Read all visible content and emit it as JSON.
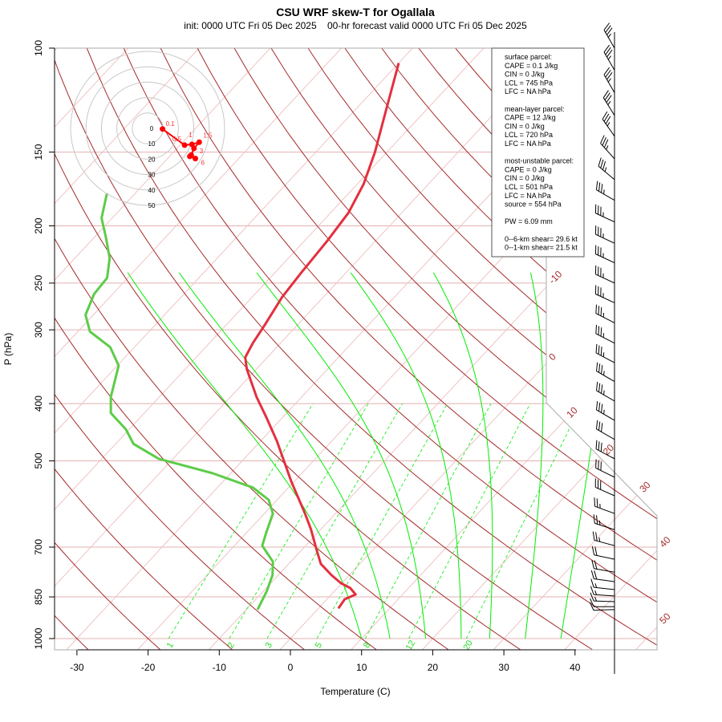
{
  "chart_data": {
    "type": "skew-T",
    "title": "CSU WRF skew-T for Ogallala",
    "subtitle": "init: 0000 UTC Fri 05 Dec 2025    00-hr forecast valid 0000 UTC Fri 05 Dec 2025",
    "xlabel": "Temperature (C)",
    "ylabel": "P (hPa)",
    "x_ticks": [
      -30,
      -20,
      -10,
      0,
      10,
      20,
      30,
      40
    ],
    "p_ticks": [
      100,
      150,
      200,
      250,
      300,
      400,
      500,
      700,
      850,
      1000
    ],
    "p_range": [
      1050,
      100
    ],
    "isotherm_labels": [
      -10,
      0,
      10,
      20,
      30,
      40,
      50
    ],
    "dry_adiabats_theta_C": {
      "from": -40,
      "to": 200,
      "step": 10
    },
    "moist_adiabats_1000hPa_C": [
      10,
      14,
      19,
      24,
      28,
      33,
      38
    ],
    "mixing_ratio_lines_gkg": [
      1,
      2,
      3,
      5,
      8,
      12,
      20
    ],
    "temperature": [
      {
        "p": 889,
        "T": 2.8
      },
      {
        "p": 858,
        "T": 2.5
      },
      {
        "p": 842,
        "T": 3.4
      },
      {
        "p": 821,
        "T": 1.8
      },
      {
        "p": 806,
        "T": -0.1
      },
      {
        "p": 781,
        "T": -2.5
      },
      {
        "p": 747,
        "T": -5.5
      },
      {
        "p": 711,
        "T": -7.7
      },
      {
        "p": 653,
        "T": -11.4
      },
      {
        "p": 614,
        "T": -14.3
      },
      {
        "p": 542,
        "T": -20.4
      },
      {
        "p": 463,
        "T": -27.7
      },
      {
        "p": 422,
        "T": -32.3
      },
      {
        "p": 390,
        "T": -36.3
      },
      {
        "p": 350,
        "T": -41.3
      },
      {
        "p": 334,
        "T": -43.1
      },
      {
        "p": 316,
        "T": -43.9
      },
      {
        "p": 294,
        "T": -44.6
      },
      {
        "p": 264,
        "T": -45.8
      },
      {
        "p": 240,
        "T": -46.3
      },
      {
        "p": 212,
        "T": -46.8
      },
      {
        "p": 190,
        "T": -47.5
      },
      {
        "p": 170,
        "T": -49.1
      },
      {
        "p": 150,
        "T": -51.7
      },
      {
        "p": 128,
        "T": -55.5
      },
      {
        "p": 106,
        "T": -60.0
      }
    ],
    "dewpoint": [
      {
        "p": 893,
        "Td": -8.4
      },
      {
        "p": 832,
        "Td": -9.5
      },
      {
        "p": 781,
        "Td": -10.8
      },
      {
        "p": 741,
        "Td": -12.5
      },
      {
        "p": 696,
        "Td": -16.1
      },
      {
        "p": 660,
        "Td": -17.3
      },
      {
        "p": 614,
        "Td": -18.8
      },
      {
        "p": 582,
        "Td": -21.2
      },
      {
        "p": 555,
        "Td": -25.0
      },
      {
        "p": 525,
        "Td": -32.5
      },
      {
        "p": 496,
        "Td": -42.0
      },
      {
        "p": 468,
        "Td": -47.5
      },
      {
        "p": 442,
        "Td": -50.5
      },
      {
        "p": 415,
        "Td": -54.7
      },
      {
        "p": 390,
        "Td": -56.8
      },
      {
        "p": 345,
        "Td": -59.8
      },
      {
        "p": 321,
        "Td": -63.4
      },
      {
        "p": 302,
        "Td": -68.3
      },
      {
        "p": 283,
        "Td": -71.1
      },
      {
        "p": 261,
        "Td": -72.6
      },
      {
        "p": 245,
        "Td": -72.9
      },
      {
        "p": 227,
        "Td": -75.1
      },
      {
        "p": 210,
        "Td": -78.2
      },
      {
        "p": 194,
        "Td": -81.5
      },
      {
        "p": 176,
        "Td": -84.0
      }
    ],
    "wind_barbs": [
      {
        "p": 100,
        "dir": 330,
        "kt": 35
      },
      {
        "p": 109,
        "dir": 330,
        "kt": 35
      },
      {
        "p": 119,
        "dir": 330,
        "kt": 35
      },
      {
        "p": 130,
        "dir": 328,
        "kt": 35
      },
      {
        "p": 141,
        "dir": 325,
        "kt": 35
      },
      {
        "p": 154,
        "dir": 318,
        "kt": 35
      },
      {
        "p": 167,
        "dir": 310,
        "kt": 35
      },
      {
        "p": 181,
        "dir": 300,
        "kt": 35
      },
      {
        "p": 197,
        "dir": 295,
        "kt": 35
      },
      {
        "p": 214,
        "dir": 295,
        "kt": 35
      },
      {
        "p": 231,
        "dir": 295,
        "kt": 35
      },
      {
        "p": 250,
        "dir": 295,
        "kt": 35
      },
      {
        "p": 270,
        "dir": 295,
        "kt": 35
      },
      {
        "p": 292,
        "dir": 297,
        "kt": 35
      },
      {
        "p": 316,
        "dir": 297,
        "kt": 35
      },
      {
        "p": 341,
        "dir": 298,
        "kt": 35
      },
      {
        "p": 367,
        "dir": 300,
        "kt": 35
      },
      {
        "p": 396,
        "dir": 300,
        "kt": 35
      },
      {
        "p": 427,
        "dir": 300,
        "kt": 35
      },
      {
        "p": 460,
        "dir": 300,
        "kt": 30
      },
      {
        "p": 496,
        "dir": 298,
        "kt": 30
      },
      {
        "p": 533,
        "dir": 296,
        "kt": 30
      },
      {
        "p": 573,
        "dir": 294,
        "kt": 30
      },
      {
        "p": 614,
        "dir": 290,
        "kt": 25
      },
      {
        "p": 654,
        "dir": 288,
        "kt": 25
      },
      {
        "p": 696,
        "dir": 285,
        "kt": 25
      },
      {
        "p": 734,
        "dir": 282,
        "kt": 20
      },
      {
        "p": 772,
        "dir": 280,
        "kt": 20
      },
      {
        "p": 801,
        "dir": 278,
        "kt": 20
      },
      {
        "p": 826,
        "dir": 276,
        "kt": 15
      },
      {
        "p": 847,
        "dir": 274,
        "kt": 15
      },
      {
        "p": 866,
        "dir": 272,
        "kt": 15
      },
      {
        "p": 883,
        "dir": 270,
        "kt": 10
      },
      {
        "p": 893,
        "dir": 268,
        "kt": 10
      }
    ],
    "hodograph": {
      "ring_labels": [
        0,
        10,
        20,
        30,
        40,
        50
      ],
      "points": [
        {
          "u": 9.7,
          "v": -0.4,
          "label": "0.1"
        },
        {
          "u": 24.0,
          "v": -10.9,
          "label": "0.5"
        },
        {
          "u": 28.8,
          "v": -10.4,
          "label": "1"
        },
        {
          "u": 33.5,
          "v": -9.0,
          "label": "1.5"
        },
        {
          "u": 30.1,
          "v": -13.0,
          "label": "3"
        },
        {
          "u": 28.3,
          "v": -17.4,
          "label": ""
        },
        {
          "u": 27.4,
          "v": -18.2,
          "label": ""
        },
        {
          "u": 31.0,
          "v": -19.6,
          "label": "6"
        }
      ]
    },
    "colors": {
      "temperature": "#e3303f",
      "dewpoint": "#5ccc48",
      "dry_adiabat": "#a52a2a",
      "isotherm": "#eec4c4",
      "isobar": "#e4b0b0",
      "moist_adiabat": "#00ee00",
      "mixing_ratio": "#33ee33",
      "hodograph": "#ff0000"
    }
  },
  "info_box": {
    "groups": [
      {
        "heading": "surface parcel:",
        "lines": [
          "CAPE = 0.1 J/kg",
          "CIN = 0 J/kg",
          "LCL = 745 hPa",
          "LFC = NA hPa"
        ]
      },
      {
        "heading": "mean-layer parcel:",
        "lines": [
          "CAPE = 12 J/kg",
          "CIN = 0 J/kg",
          "LCL = 720 hPa",
          "LFC = NA hPa"
        ]
      },
      {
        "heading": "most-unstable parcel:",
        "lines": [
          "CAPE = 0 J/kg",
          "CIN = 0 J/kg",
          "LCL = 501 hPa",
          "LFC = NA hPa",
          "source = 554 hPa"
        ]
      },
      {
        "heading": "",
        "lines": [
          "PW =  6.09 mm"
        ]
      },
      {
        "heading": "",
        "lines": [
          "0--6-km shear= 29.6 kt",
          "0--1-km shear= 21.5 kt"
        ]
      }
    ]
  }
}
